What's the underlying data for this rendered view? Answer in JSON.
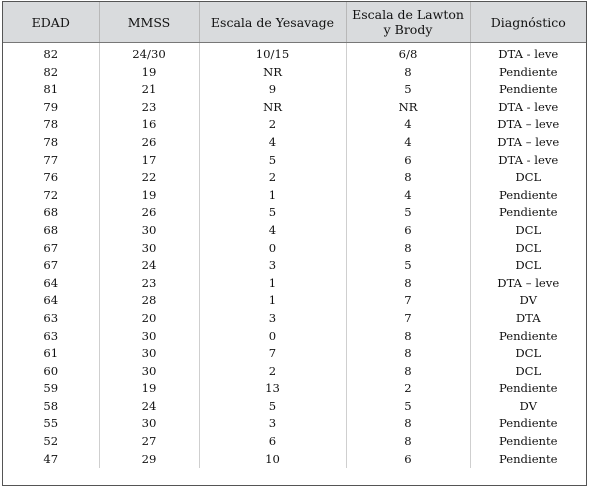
{
  "table": {
    "headers": [
      "EDAD",
      "MMSS",
      "Escala de Yesavage",
      "Escala de Lawton y Brody",
      "Diagnóstico"
    ],
    "rows": [
      [
        "82",
        "24/30",
        "10/15",
        "6/8",
        "DTA - leve"
      ],
      [
        "82",
        "19",
        "NR",
        "8",
        "Pendiente"
      ],
      [
        "81",
        "21",
        "9",
        "5",
        "Pendiente"
      ],
      [
        "79",
        "23",
        "NR",
        "NR",
        "DTA - leve"
      ],
      [
        "78",
        "16",
        "2",
        "4",
        "DTA – leve"
      ],
      [
        "78",
        "26",
        "4",
        "4",
        "DTA – leve"
      ],
      [
        "77",
        "17",
        "5",
        "6",
        "DTA - leve"
      ],
      [
        "76",
        "22",
        "2",
        "8",
        "DCL"
      ],
      [
        "72",
        "19",
        "1",
        "4",
        "Pendiente"
      ],
      [
        "68",
        "26",
        "5",
        "5",
        "Pendiente"
      ],
      [
        "68",
        "30",
        "4",
        "6",
        "DCL"
      ],
      [
        "67",
        "30",
        "0",
        "8",
        "DCL"
      ],
      [
        "67",
        "24",
        "3",
        "5",
        "DCL"
      ],
      [
        "64",
        "23",
        "1",
        "8",
        "DTA – leve"
      ],
      [
        "64",
        "28",
        "1",
        "7",
        "DV"
      ],
      [
        "63",
        "20",
        "3",
        "7",
        "DTA"
      ],
      [
        "63",
        "30",
        "0",
        "8",
        "Pendiente"
      ],
      [
        "61",
        "30",
        "7",
        "8",
        "DCL"
      ],
      [
        "60",
        "30",
        "2",
        "8",
        "DCL"
      ],
      [
        "59",
        "19",
        "13",
        "2",
        "Pendiente"
      ],
      [
        "58",
        "24",
        "5",
        "5",
        "DV"
      ],
      [
        "55",
        "30",
        "3",
        "8",
        "Pendiente"
      ],
      [
        "52",
        "27",
        "6",
        "8",
        "Pendiente"
      ],
      [
        "47",
        "29",
        "10",
        "6",
        "Pendiente"
      ]
    ]
  }
}
